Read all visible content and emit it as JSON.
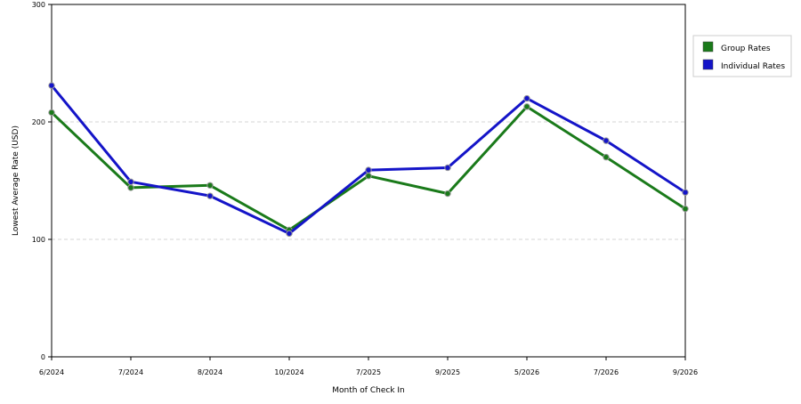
{
  "chart_data": {
    "type": "line",
    "xlabel": "Month of Check In",
    "ylabel": "Lowest Average Rate (USD)",
    "categories": [
      "6/2024",
      "7/2024",
      "8/2024",
      "10/2024",
      "7/2025",
      "9/2025",
      "5/2026",
      "7/2026",
      "9/2026"
    ],
    "ylim": [
      0,
      300
    ],
    "yticks": [
      0,
      100,
      200,
      300
    ],
    "grid": "horizontal dashed",
    "legend_position": "top-right",
    "series": [
      {
        "name": "Group Rates",
        "color": "#1a7a1a",
        "values": [
          208,
          144,
          146,
          108,
          154,
          139,
          213,
          170,
          126
        ]
      },
      {
        "name": "Individual Rates",
        "color": "#1414c8",
        "values": [
          231,
          149,
          137,
          105,
          159,
          161,
          220,
          184,
          140
        ]
      }
    ]
  }
}
